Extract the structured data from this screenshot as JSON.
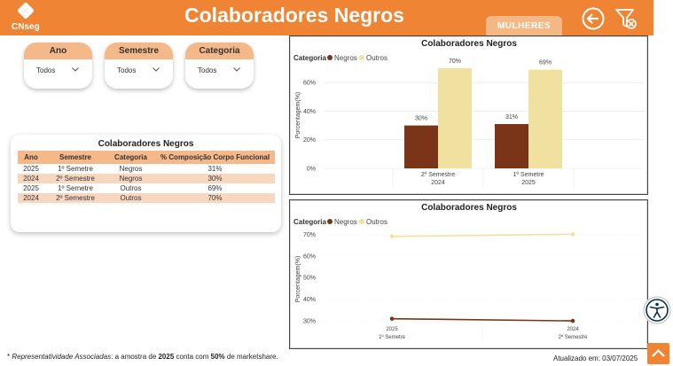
{
  "header": {
    "brand": "CNseg",
    "title": "Colaboradores Negros",
    "tab_label": "MULHERES"
  },
  "filters": [
    {
      "label": "Ano",
      "value": "Todos"
    },
    {
      "label": "Semestre",
      "value": "Todos"
    },
    {
      "label": "Categoria",
      "value": "Todos"
    }
  ],
  "table": {
    "title": "Colaboradores Negros",
    "columns": [
      "Ano",
      "Semestre",
      "Categoria",
      "% Composição Corpo Funcional"
    ],
    "rows": [
      [
        "2025",
        "1º Semetre",
        "Negros",
        "31%"
      ],
      [
        "2024",
        "2º Semestre",
        "Negros",
        "30%"
      ],
      [
        "2025",
        "1º Semetre",
        "Outros",
        "69%"
      ],
      [
        "2024",
        "2º Semestre",
        "Outros",
        "70%"
      ]
    ]
  },
  "chart_data": [
    {
      "type": "bar",
      "title": "Colaboradores Negros",
      "legend_title": "Categoria",
      "ylabel": "Porcentagem(%)",
      "ylim": [
        0,
        75
      ],
      "yticks": [
        "0%",
        "20%",
        "40%",
        "60%"
      ],
      "categories": [
        "2º Semestre\n2024",
        "1º Semetre\n2025"
      ],
      "series": [
        {
          "name": "Negros",
          "color": "#7a3418",
          "values": [
            30,
            31
          ],
          "labels": [
            "30%",
            "31%"
          ]
        },
        {
          "name": "Outros",
          "color": "#f1e1a0",
          "values": [
            70,
            69
          ],
          "labels": [
            "70%",
            "69%"
          ]
        }
      ]
    },
    {
      "type": "line",
      "title": "Colaboradores Negros",
      "legend_title": "Categoria",
      "ylabel": "Porcentagem(%)",
      "ylim": [
        28,
        73
      ],
      "yticks": [
        "30%",
        "40%",
        "50%",
        "60%",
        "70%"
      ],
      "categories": [
        "2025\n1º Semetre",
        "2024\n2º Semestre"
      ],
      "series": [
        {
          "name": "Negros",
          "color": "#7a3418",
          "values": [
            31,
            30
          ]
        },
        {
          "name": "Outros",
          "color": "#f1e1a0",
          "values": [
            69,
            70
          ]
        }
      ]
    }
  ],
  "footer": {
    "note_prefix": "* ",
    "note_italic": "Representatividade Associadas",
    "note_mid": ": a amostra de ",
    "note_year": "2025",
    "note_mid2": " conta com ",
    "note_pct": "50%",
    "note_end": " de marketshare.",
    "updated_label": "Atualizado em:",
    "updated_date": "03/07/2025"
  },
  "colors": {
    "accent": "#ee8434",
    "accent_light": "#f4b889",
    "negros": "#7a3418",
    "outros": "#f1e1a0"
  },
  "icons": [
    "cnseg-logo-icon",
    "back-arrow-icon",
    "clear-filter-icon",
    "chevron-down-icon",
    "accessibility-icon",
    "arrow-up-icon"
  ]
}
